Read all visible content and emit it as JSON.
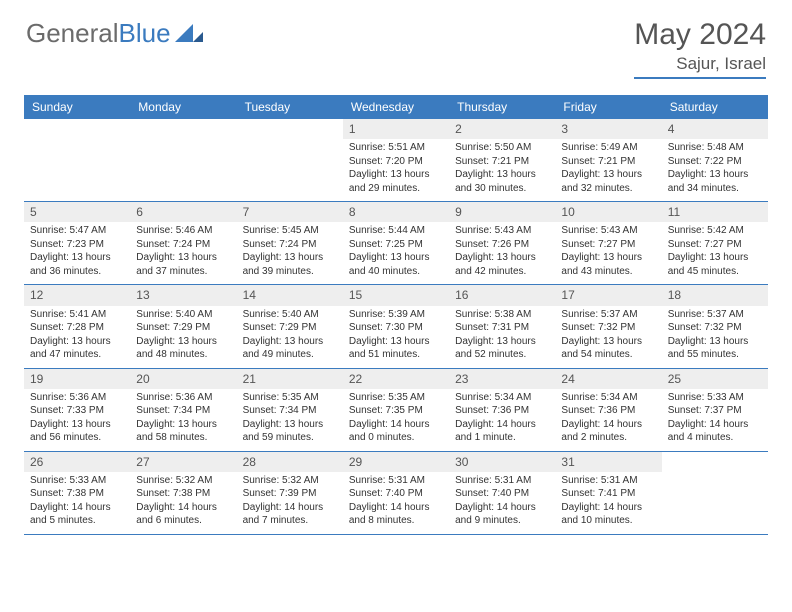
{
  "logo": {
    "part1": "General",
    "part2": "Blue"
  },
  "title": "May 2024",
  "location": "Sajur, Israel",
  "colors": {
    "header_bg": "#3b7bbf",
    "header_text": "#ffffff",
    "daynum_bg": "#eeeeee",
    "border": "#3b7bbf",
    "text": "#333333",
    "title_text": "#555555"
  },
  "day_headers": [
    "Sunday",
    "Monday",
    "Tuesday",
    "Wednesday",
    "Thursday",
    "Friday",
    "Saturday"
  ],
  "weeks": [
    [
      null,
      null,
      null,
      {
        "n": "1",
        "sr": "Sunrise: 5:51 AM",
        "ss": "Sunset: 7:20 PM",
        "d1": "Daylight: 13 hours",
        "d2": "and 29 minutes."
      },
      {
        "n": "2",
        "sr": "Sunrise: 5:50 AM",
        "ss": "Sunset: 7:21 PM",
        "d1": "Daylight: 13 hours",
        "d2": "and 30 minutes."
      },
      {
        "n": "3",
        "sr": "Sunrise: 5:49 AM",
        "ss": "Sunset: 7:21 PM",
        "d1": "Daylight: 13 hours",
        "d2": "and 32 minutes."
      },
      {
        "n": "4",
        "sr": "Sunrise: 5:48 AM",
        "ss": "Sunset: 7:22 PM",
        "d1": "Daylight: 13 hours",
        "d2": "and 34 minutes."
      }
    ],
    [
      {
        "n": "5",
        "sr": "Sunrise: 5:47 AM",
        "ss": "Sunset: 7:23 PM",
        "d1": "Daylight: 13 hours",
        "d2": "and 36 minutes."
      },
      {
        "n": "6",
        "sr": "Sunrise: 5:46 AM",
        "ss": "Sunset: 7:24 PM",
        "d1": "Daylight: 13 hours",
        "d2": "and 37 minutes."
      },
      {
        "n": "7",
        "sr": "Sunrise: 5:45 AM",
        "ss": "Sunset: 7:24 PM",
        "d1": "Daylight: 13 hours",
        "d2": "and 39 minutes."
      },
      {
        "n": "8",
        "sr": "Sunrise: 5:44 AM",
        "ss": "Sunset: 7:25 PM",
        "d1": "Daylight: 13 hours",
        "d2": "and 40 minutes."
      },
      {
        "n": "9",
        "sr": "Sunrise: 5:43 AM",
        "ss": "Sunset: 7:26 PM",
        "d1": "Daylight: 13 hours",
        "d2": "and 42 minutes."
      },
      {
        "n": "10",
        "sr": "Sunrise: 5:43 AM",
        "ss": "Sunset: 7:27 PM",
        "d1": "Daylight: 13 hours",
        "d2": "and 43 minutes."
      },
      {
        "n": "11",
        "sr": "Sunrise: 5:42 AM",
        "ss": "Sunset: 7:27 PM",
        "d1": "Daylight: 13 hours",
        "d2": "and 45 minutes."
      }
    ],
    [
      {
        "n": "12",
        "sr": "Sunrise: 5:41 AM",
        "ss": "Sunset: 7:28 PM",
        "d1": "Daylight: 13 hours",
        "d2": "and 47 minutes."
      },
      {
        "n": "13",
        "sr": "Sunrise: 5:40 AM",
        "ss": "Sunset: 7:29 PM",
        "d1": "Daylight: 13 hours",
        "d2": "and 48 minutes."
      },
      {
        "n": "14",
        "sr": "Sunrise: 5:40 AM",
        "ss": "Sunset: 7:29 PM",
        "d1": "Daylight: 13 hours",
        "d2": "and 49 minutes."
      },
      {
        "n": "15",
        "sr": "Sunrise: 5:39 AM",
        "ss": "Sunset: 7:30 PM",
        "d1": "Daylight: 13 hours",
        "d2": "and 51 minutes."
      },
      {
        "n": "16",
        "sr": "Sunrise: 5:38 AM",
        "ss": "Sunset: 7:31 PM",
        "d1": "Daylight: 13 hours",
        "d2": "and 52 minutes."
      },
      {
        "n": "17",
        "sr": "Sunrise: 5:37 AM",
        "ss": "Sunset: 7:32 PM",
        "d1": "Daylight: 13 hours",
        "d2": "and 54 minutes."
      },
      {
        "n": "18",
        "sr": "Sunrise: 5:37 AM",
        "ss": "Sunset: 7:32 PM",
        "d1": "Daylight: 13 hours",
        "d2": "and 55 minutes."
      }
    ],
    [
      {
        "n": "19",
        "sr": "Sunrise: 5:36 AM",
        "ss": "Sunset: 7:33 PM",
        "d1": "Daylight: 13 hours",
        "d2": "and 56 minutes."
      },
      {
        "n": "20",
        "sr": "Sunrise: 5:36 AM",
        "ss": "Sunset: 7:34 PM",
        "d1": "Daylight: 13 hours",
        "d2": "and 58 minutes."
      },
      {
        "n": "21",
        "sr": "Sunrise: 5:35 AM",
        "ss": "Sunset: 7:34 PM",
        "d1": "Daylight: 13 hours",
        "d2": "and 59 minutes."
      },
      {
        "n": "22",
        "sr": "Sunrise: 5:35 AM",
        "ss": "Sunset: 7:35 PM",
        "d1": "Daylight: 14 hours",
        "d2": "and 0 minutes."
      },
      {
        "n": "23",
        "sr": "Sunrise: 5:34 AM",
        "ss": "Sunset: 7:36 PM",
        "d1": "Daylight: 14 hours",
        "d2": "and 1 minute."
      },
      {
        "n": "24",
        "sr": "Sunrise: 5:34 AM",
        "ss": "Sunset: 7:36 PM",
        "d1": "Daylight: 14 hours",
        "d2": "and 2 minutes."
      },
      {
        "n": "25",
        "sr": "Sunrise: 5:33 AM",
        "ss": "Sunset: 7:37 PM",
        "d1": "Daylight: 14 hours",
        "d2": "and 4 minutes."
      }
    ],
    [
      {
        "n": "26",
        "sr": "Sunrise: 5:33 AM",
        "ss": "Sunset: 7:38 PM",
        "d1": "Daylight: 14 hours",
        "d2": "and 5 minutes."
      },
      {
        "n": "27",
        "sr": "Sunrise: 5:32 AM",
        "ss": "Sunset: 7:38 PM",
        "d1": "Daylight: 14 hours",
        "d2": "and 6 minutes."
      },
      {
        "n": "28",
        "sr": "Sunrise: 5:32 AM",
        "ss": "Sunset: 7:39 PM",
        "d1": "Daylight: 14 hours",
        "d2": "and 7 minutes."
      },
      {
        "n": "29",
        "sr": "Sunrise: 5:31 AM",
        "ss": "Sunset: 7:40 PM",
        "d1": "Daylight: 14 hours",
        "d2": "and 8 minutes."
      },
      {
        "n": "30",
        "sr": "Sunrise: 5:31 AM",
        "ss": "Sunset: 7:40 PM",
        "d1": "Daylight: 14 hours",
        "d2": "and 9 minutes."
      },
      {
        "n": "31",
        "sr": "Sunrise: 5:31 AM",
        "ss": "Sunset: 7:41 PM",
        "d1": "Daylight: 14 hours",
        "d2": "and 10 minutes."
      },
      null
    ]
  ]
}
